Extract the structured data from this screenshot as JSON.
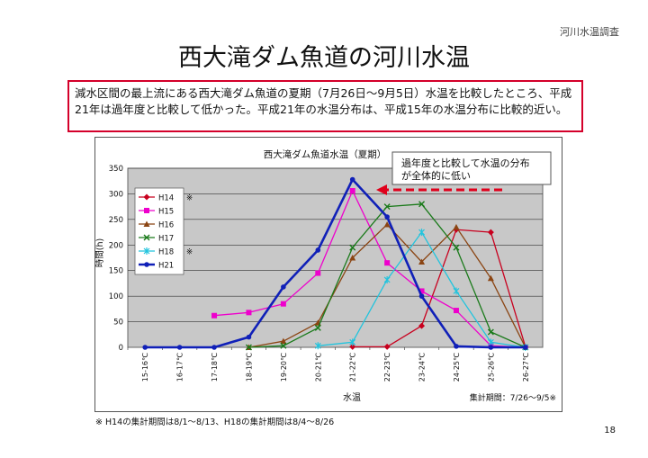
{
  "header_note": "河川水温調査",
  "title": "西大滝ダム魚道の河川水温",
  "description": "減水区間の最上流にある西大滝ダム魚道の夏期（7月26日～9月5日）水温を比較したところ、平成21年は過年度と比較して低かった。平成21年の水温分布は、平成15年の水温分布に比較的近い。",
  "annotation": {
    "lines": [
      "過年度と比較して水温の分布",
      "が全体的に低い"
    ],
    "arrow_color": "#e0001b"
  },
  "collection_period": "集計期間：7/26～9/5※",
  "footnote": "※ H14の集計期間は8/1～8/13、H18の集計期間は8/4～8/26",
  "page_number": "18",
  "chart_data": {
    "type": "line",
    "title": "西大滝ダム魚道水温（夏期）",
    "xlabel": "水温",
    "ylabel": "時間(h)",
    "ylim": [
      0,
      350
    ],
    "yticks": [
      0,
      50,
      100,
      150,
      200,
      250,
      300,
      350
    ],
    "grid": true,
    "legend_position": "top-left",
    "categories": [
      "15-16℃",
      "16-17℃",
      "17-18℃",
      "18-19℃",
      "19-20℃",
      "20-21℃",
      "21-22℃",
      "22-23℃",
      "23-24℃",
      "24-25℃",
      "25-26℃",
      "26-27℃"
    ],
    "series": [
      {
        "name": "H14",
        "note": "※",
        "color": "#c8001e",
        "marker": "diamond",
        "width": 1.3,
        "values": [
          null,
          null,
          null,
          null,
          null,
          null,
          1,
          1,
          42,
          230,
          225,
          1
        ]
      },
      {
        "name": "H15",
        "note": "",
        "color": "#ee00cc",
        "marker": "square",
        "width": 1.3,
        "values": [
          null,
          null,
          62,
          68,
          85,
          145,
          306,
          165,
          110,
          72,
          3,
          0
        ]
      },
      {
        "name": "H16",
        "note": "",
        "color": "#8b4513",
        "marker": "triangle",
        "width": 1.3,
        "values": [
          null,
          null,
          null,
          0,
          12,
          48,
          175,
          240,
          167,
          235,
          135,
          0
        ]
      },
      {
        "name": "H17",
        "note": "",
        "color": "#1a7a1a",
        "marker": "x",
        "width": 1.3,
        "values": [
          null,
          null,
          null,
          0,
          3,
          38,
          195,
          275,
          280,
          195,
          30,
          0
        ]
      },
      {
        "name": "H18",
        "note": "※",
        "color": "#22c4dd",
        "marker": "star",
        "width": 1.3,
        "values": [
          null,
          null,
          null,
          null,
          null,
          3,
          10,
          132,
          225,
          110,
          10,
          0
        ]
      },
      {
        "name": "H21",
        "note": "",
        "color": "#1020b8",
        "marker": "circle",
        "width": 2.6,
        "values": [
          0,
          0,
          0,
          20,
          118,
          190,
          328,
          255,
          100,
          2,
          0,
          0
        ]
      }
    ]
  }
}
